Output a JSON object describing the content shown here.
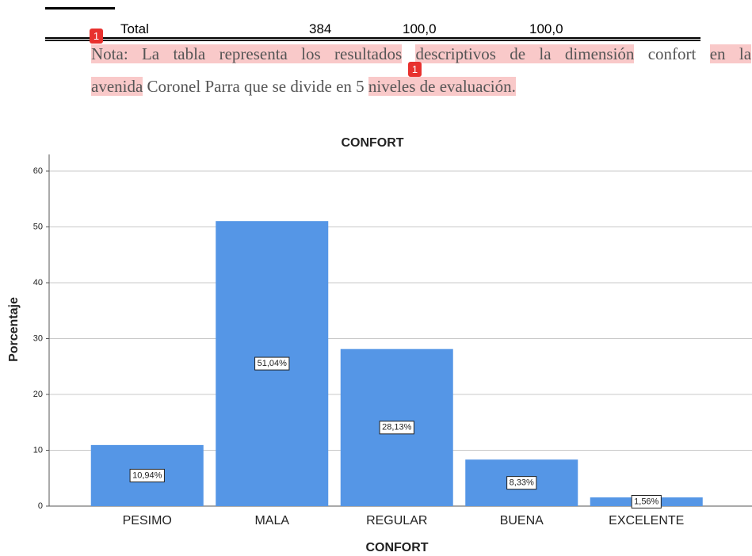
{
  "table": {
    "total_row": [
      "Total",
      "384",
      "100,0",
      "100,0"
    ]
  },
  "note": {
    "line1": [
      "Nota: La tabla representa los resultados",
      "descriptivos de la dimensión",
      "confort",
      "en la"
    ],
    "line2": [
      "avenida",
      "Coronel Parra que se divide en 5",
      "niveles de evaluación."
    ]
  },
  "badges": [
    "1",
    "1"
  ],
  "chart_data": {
    "type": "bar",
    "title": "CONFORT",
    "x_label": "CONFORT",
    "y_label": "Porcentaje",
    "categories": [
      "PESIMO",
      "MALA",
      "REGULAR",
      "BUENA",
      "EXCELENTE"
    ],
    "values": [
      10.94,
      51.04,
      28.13,
      8.33,
      1.56
    ],
    "value_labels": [
      "10,94%",
      "51,04%",
      "28,13%",
      "8,33%",
      "1,56%"
    ],
    "color": "#5596e6",
    "ylim": [
      0,
      60
    ],
    "yticks": [
      0,
      10,
      20,
      30,
      40,
      50,
      60
    ],
    "grid": true
  }
}
